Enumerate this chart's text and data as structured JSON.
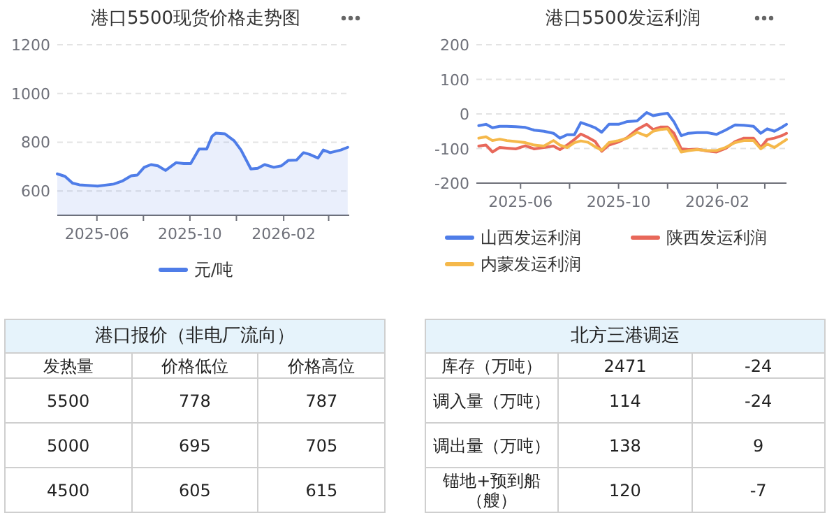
{
  "chart_data": [
    {
      "type": "area",
      "title": "港口5500现货价格走势图",
      "legend": "bottom",
      "grid": "y",
      "xlim": [
        "2025-04-10",
        "2026-04-28"
      ],
      "xticks": [
        {
          "value": "2025-06-01",
          "label": "2025-06"
        },
        {
          "value": "2025-08-01",
          "label": null
        },
        {
          "value": "2025-10-01",
          "label": "2025-10"
        },
        {
          "value": "2025-12-01",
          "label": null
        },
        {
          "value": "2026-02-01",
          "label": "2026-02"
        },
        {
          "value": "2026-04-01",
          "label": null
        }
      ],
      "ylim": [
        500,
        1200
      ],
      "yticks": [
        600,
        800,
        1000,
        1200
      ],
      "series": [
        {
          "name": "元/吨",
          "color": "#4f7de8",
          "x": [
            "2025-04-10",
            "2025-04-20",
            "2025-04-30",
            "2025-05-09",
            "2025-06-02",
            "2025-06-23",
            "2025-07-04",
            "2025-07-16",
            "2025-07-24",
            "2025-08-02",
            "2025-08-11",
            "2025-08-20",
            "2025-08-30",
            "2025-09-13",
            "2025-09-23",
            "2025-10-02",
            "2025-10-13",
            "2025-10-23",
            "2025-10-30",
            "2025-11-04",
            "2025-11-16",
            "2025-11-28",
            "2025-12-07",
            "2025-12-20",
            "2025-12-29",
            "2026-01-07",
            "2026-01-19",
            "2026-01-29",
            "2026-02-07",
            "2026-02-18",
            "2026-02-27",
            "2026-03-07",
            "2026-03-18",
            "2026-03-25",
            "2026-04-03",
            "2026-04-17",
            "2026-04-26"
          ],
          "values": [
            670,
            660,
            632,
            625,
            620,
            628,
            640,
            662,
            665,
            697,
            708,
            703,
            684,
            716,
            712,
            712,
            772,
            772,
            824,
            837,
            834,
            806,
            768,
            690,
            693,
            708,
            697,
            703,
            725,
            727,
            757,
            750,
            735,
            768,
            757,
            768,
            779
          ]
        }
      ]
    },
    {
      "type": "line",
      "title": "港口5500发运利润",
      "legend": "bottom",
      "grid": "y",
      "xlim": [
        "2025-04-07",
        "2026-04-28"
      ],
      "xticks": [
        {
          "value": "2025-06-01",
          "label": "2025-06"
        },
        {
          "value": "2025-08-01",
          "label": null
        },
        {
          "value": "2025-10-01",
          "label": "2025-10"
        },
        {
          "value": "2025-12-01",
          "label": null
        },
        {
          "value": "2026-02-01",
          "label": "2026-02"
        },
        {
          "value": "2026-04-01",
          "label": null
        }
      ],
      "ylim": [
        -200,
        200
      ],
      "yticks": [
        -200,
        -100,
        0,
        100,
        200
      ],
      "x": [
        "2025-04-10",
        "2025-04-19",
        "2025-04-27",
        "2025-05-06",
        "2025-05-15",
        "2025-05-26",
        "2025-06-07",
        "2025-06-18",
        "2025-06-30",
        "2025-07-12",
        "2025-07-20",
        "2025-07-29",
        "2025-08-07",
        "2025-08-15",
        "2025-08-24",
        "2025-09-02",
        "2025-09-10",
        "2025-09-19",
        "2025-10-01",
        "2025-10-12",
        "2025-10-24",
        "2025-11-05",
        "2025-11-13",
        "2025-11-22",
        "2025-12-01",
        "2025-12-09",
        "2025-12-18",
        "2025-12-27",
        "2026-01-07",
        "2026-01-19",
        "2026-01-31",
        "2026-02-11",
        "2026-02-23",
        "2026-03-06",
        "2026-03-18",
        "2026-03-27",
        "2026-04-04",
        "2026-04-13",
        "2026-04-22",
        "2026-04-28"
      ],
      "series": [
        {
          "name": "山西发运利润",
          "color": "#4f7de8",
          "values": [
            -34,
            -30,
            -40,
            -36,
            -36,
            -37,
            -39,
            -47,
            -50,
            -56,
            -70,
            -60,
            -60,
            -25,
            -32,
            -40,
            -53,
            -30,
            -30,
            -22,
            -20,
            4,
            -5,
            -1,
            2,
            -23,
            -63,
            -56,
            -54,
            -54,
            -59,
            -47,
            -32,
            -33,
            -36,
            -56,
            -43,
            -50,
            -39,
            -30
          ]
        },
        {
          "name": "陕西发运利润",
          "color": "#e8685a",
          "values": [
            -93,
            -90,
            -110,
            -97,
            -99,
            -101,
            -92,
            -101,
            -97,
            -93,
            -103,
            -90,
            -74,
            -58,
            -68,
            -80,
            -108,
            -90,
            -81,
            -68,
            -45,
            -30,
            -45,
            -38,
            -38,
            -56,
            -101,
            -103,
            -102,
            -107,
            -110,
            -100,
            -80,
            -70,
            -70,
            -97,
            -74,
            -70,
            -63,
            -56
          ]
        },
        {
          "name": "内蒙发运利润",
          "color": "#f5b84a",
          "values": [
            -70,
            -66,
            -77,
            -73,
            -77,
            -80,
            -83,
            -90,
            -93,
            -77,
            -90,
            -97,
            -83,
            -78,
            -82,
            -95,
            -105,
            -83,
            -77,
            -70,
            -53,
            -64,
            -50,
            -45,
            -43,
            -72,
            -110,
            -106,
            -103,
            -106,
            -106,
            -97,
            -83,
            -77,
            -77,
            -101,
            -87,
            -97,
            -83,
            -74
          ]
        }
      ]
    },
    {
      "type": "other",
      "title": "港口报价（非电厂流向）",
      "annotations": [
        "发热量",
        "价格低位",
        "价格高位",
        "5500",
        "778",
        "787",
        "5000",
        "695",
        "705",
        "4500",
        "605",
        "615"
      ]
    },
    {
      "type": "other",
      "title": "北方三港调运",
      "annotations": [
        "库存（万吨）",
        "2471",
        "-24",
        "调入量（万吨）",
        "114",
        "-24",
        "调出量（万吨）",
        "138",
        "9",
        "锚地+预到船（艘）",
        "120",
        "-7"
      ]
    }
  ]
}
